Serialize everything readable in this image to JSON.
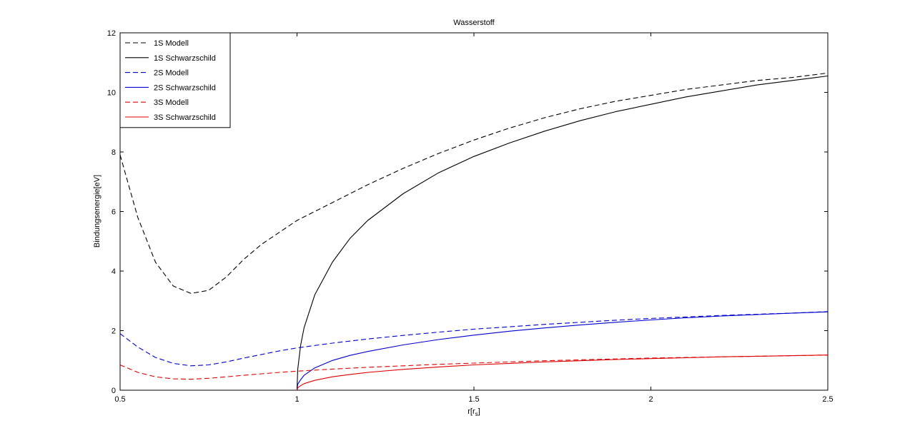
{
  "chart_data": {
    "type": "line",
    "title": "Wasserstoff",
    "xlabel": "r[r_s]",
    "xlabel_main": "r[r",
    "xlabel_sub": "s",
    "xlabel_end": "]",
    "ylabel": "Bindungsenergie[eV]",
    "xlim": [
      0.5,
      2.5
    ],
    "ylim": [
      0,
      12
    ],
    "x_ticks": [
      0.5,
      1,
      1.5,
      2,
      2.5
    ],
    "x_tick_labels": [
      "0.5",
      "1",
      "1.5",
      "2",
      "2.5"
    ],
    "y_ticks": [
      0,
      2,
      4,
      6,
      8,
      10,
      12
    ],
    "y_tick_labels": [
      "0",
      "2",
      "4",
      "6",
      "8",
      "10",
      "12"
    ],
    "grid": false,
    "legend_position": "top-left",
    "series": [
      {
        "name": "1S Modell",
        "color": "#000000",
        "style": "dashed",
        "x": [
          0.5,
          0.55,
          0.6,
          0.65,
          0.7,
          0.75,
          0.8,
          0.85,
          0.9,
          0.95,
          1.0,
          1.1,
          1.2,
          1.3,
          1.4,
          1.5,
          1.6,
          1.7,
          1.8,
          1.9,
          2.0,
          2.1,
          2.2,
          2.3,
          2.4,
          2.5
        ],
        "y": [
          7.9,
          5.8,
          4.3,
          3.5,
          3.25,
          3.35,
          3.8,
          4.4,
          4.9,
          5.3,
          5.7,
          6.3,
          6.9,
          7.45,
          7.95,
          8.4,
          8.8,
          9.15,
          9.45,
          9.7,
          9.9,
          10.1,
          10.25,
          10.4,
          10.5,
          10.65
        ]
      },
      {
        "name": "1S Schwarzschild",
        "color": "#000000",
        "style": "solid",
        "x": [
          1.0,
          1.002,
          1.01,
          1.02,
          1.05,
          1.1,
          1.15,
          1.2,
          1.3,
          1.4,
          1.5,
          1.6,
          1.7,
          1.8,
          1.9,
          2.0,
          2.1,
          2.2,
          2.3,
          2.4,
          2.5
        ],
        "y": [
          0.0,
          0.7,
          1.5,
          2.1,
          3.2,
          4.3,
          5.1,
          5.7,
          6.6,
          7.3,
          7.85,
          8.3,
          8.7,
          9.05,
          9.35,
          9.6,
          9.85,
          10.05,
          10.25,
          10.4,
          10.55
        ]
      },
      {
        "name": "2S Modell",
        "color": "#0000cc",
        "style": "dashed",
        "x": [
          0.5,
          0.55,
          0.6,
          0.65,
          0.7,
          0.75,
          0.8,
          0.85,
          0.9,
          0.95,
          1.0,
          1.1,
          1.2,
          1.3,
          1.4,
          1.5,
          1.6,
          1.7,
          1.8,
          1.9,
          2.0,
          2.1,
          2.2,
          2.3,
          2.4,
          2.5
        ],
        "y": [
          1.9,
          1.45,
          1.1,
          0.9,
          0.82,
          0.85,
          0.95,
          1.08,
          1.2,
          1.32,
          1.42,
          1.58,
          1.72,
          1.84,
          1.95,
          2.05,
          2.13,
          2.21,
          2.28,
          2.35,
          2.41,
          2.46,
          2.51,
          2.55,
          2.59,
          2.64
        ]
      },
      {
        "name": "2S Schwarzschild",
        "color": "#0000cc",
        "style": "solid",
        "x": [
          1.0,
          1.002,
          1.01,
          1.02,
          1.05,
          1.1,
          1.15,
          1.2,
          1.3,
          1.4,
          1.5,
          1.6,
          1.7,
          1.8,
          1.9,
          2.0,
          2.1,
          2.2,
          2.3,
          2.4,
          2.5
        ],
        "y": [
          0.0,
          0.2,
          0.35,
          0.5,
          0.75,
          1.0,
          1.17,
          1.3,
          1.52,
          1.7,
          1.85,
          1.98,
          2.09,
          2.19,
          2.28,
          2.36,
          2.43,
          2.49,
          2.54,
          2.59,
          2.63
        ]
      },
      {
        "name": "3S Modell",
        "color": "#dd0000",
        "style": "dashed",
        "x": [
          0.5,
          0.55,
          0.6,
          0.65,
          0.7,
          0.75,
          0.8,
          0.85,
          0.9,
          0.95,
          1.0,
          1.1,
          1.2,
          1.3,
          1.4,
          1.5,
          1.6,
          1.7,
          1.8,
          1.9,
          2.0,
          2.1,
          2.2,
          2.3,
          2.4,
          2.5
        ],
        "y": [
          0.85,
          0.6,
          0.45,
          0.38,
          0.37,
          0.4,
          0.45,
          0.5,
          0.55,
          0.6,
          0.64,
          0.71,
          0.77,
          0.82,
          0.87,
          0.91,
          0.95,
          0.99,
          1.02,
          1.05,
          1.08,
          1.1,
          1.12,
          1.14,
          1.16,
          1.18
        ]
      },
      {
        "name": "3S Schwarzschild",
        "color": "#dd0000",
        "style": "solid",
        "x": [
          1.0,
          1.002,
          1.01,
          1.02,
          1.05,
          1.1,
          1.15,
          1.2,
          1.3,
          1.4,
          1.5,
          1.6,
          1.7,
          1.8,
          1.9,
          2.0,
          2.1,
          2.2,
          2.3,
          2.4,
          2.5
        ],
        "y": [
          0.0,
          0.08,
          0.15,
          0.22,
          0.33,
          0.45,
          0.53,
          0.6,
          0.7,
          0.78,
          0.85,
          0.9,
          0.95,
          0.99,
          1.03,
          1.06,
          1.09,
          1.12,
          1.14,
          1.16,
          1.18
        ]
      }
    ]
  }
}
